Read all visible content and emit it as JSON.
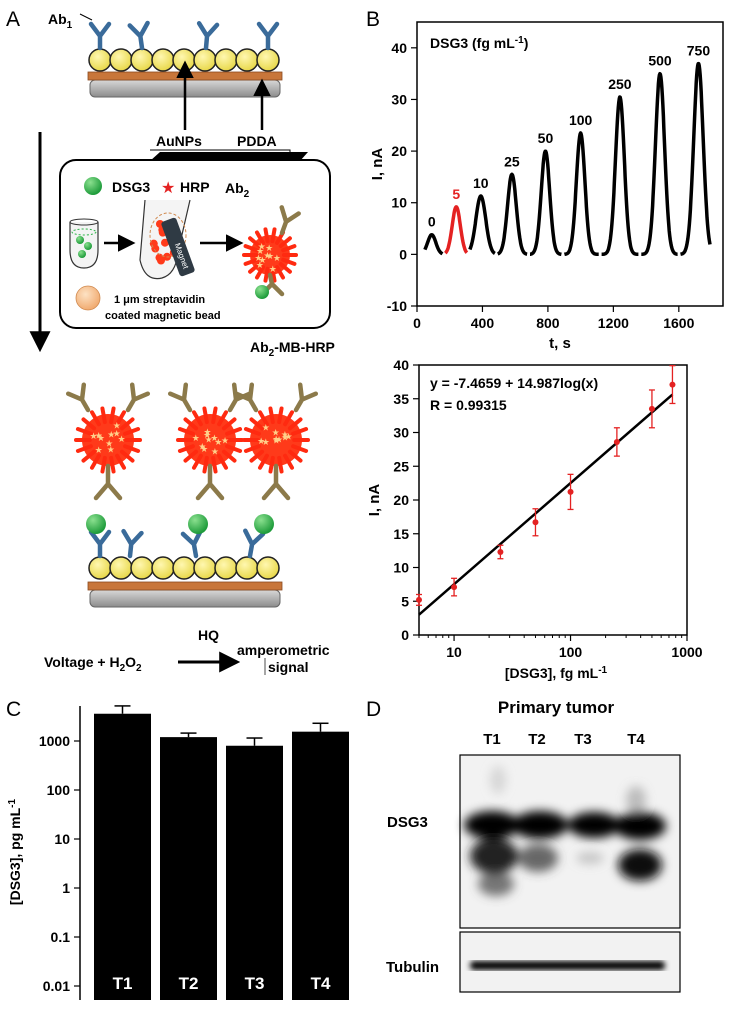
{
  "panel_labels": {
    "a": "A",
    "b": "B",
    "c": "C",
    "d": "D"
  },
  "panel_a": {
    "ab1_label": "Ab",
    "ab1_sub": "1",
    "aunps_label": "AuNPs",
    "pdda_label": "PDDA",
    "legend_dsg3": "DSG3",
    "legend_hrp": "HRP",
    "ab2_label": "Ab",
    "ab2_sub": "2",
    "magnet_label": "Magnet",
    "bead_label_1": "1 μm streptavidin",
    "bead_label_2": "coated magnetic bead",
    "conj_label": "Ab",
    "conj_sub": "2",
    "conj_suffix": "-MB-HRP",
    "hq_label": "HQ",
    "voltage_text": "Voltage + H",
    "h2o2_sub": "2",
    "o_text": "O",
    "h2o2_sub2": "2",
    "amp_line1": "amperometric",
    "amp_line2": "signal",
    "colors": {
      "antibody_blue": "#3a6b9a",
      "antibody_olive": "#8c7a4a",
      "aunp_yellow": "#f2e25a",
      "pdda_orange": "#c8763a",
      "dsg3_green": "#2fb54a",
      "hrp_red": "#e42222"
    }
  },
  "chart_data": [
    {
      "id": "B-top",
      "type": "line",
      "title": "DSG3 (fg mL",
      "title_sup": "-1",
      "title_close": ")",
      "xlabel": "t, s",
      "ylabel": "I, nA",
      "xlim": [
        0,
        1870
      ],
      "ylim": [
        -10,
        45
      ],
      "xticks": [
        0,
        400,
        800,
        1200,
        1600
      ],
      "yticks": [
        -10,
        0,
        10,
        20,
        30,
        40
      ],
      "peaks": [
        {
          "label": "0",
          "center": 90,
          "height": 3.8,
          "width": 25,
          "color": "#000000"
        },
        {
          "label": "5",
          "center": 240,
          "height": 9.2,
          "width": 25,
          "color": "#e42222"
        },
        {
          "label": "10",
          "center": 390,
          "height": 11.3,
          "width": 30,
          "color": "#000000"
        },
        {
          "label": "25",
          "center": 580,
          "height": 15.5,
          "width": 27,
          "color": "#000000"
        },
        {
          "label": "50",
          "center": 785,
          "height": 20.0,
          "width": 26,
          "color": "#000000"
        },
        {
          "label": "100",
          "center": 1000,
          "height": 23.5,
          "width": 26,
          "color": "#000000"
        },
        {
          "label": "250",
          "center": 1240,
          "height": 30.5,
          "width": 27,
          "color": "#000000"
        },
        {
          "label": "500",
          "center": 1485,
          "height": 35.0,
          "width": 28,
          "color": "#000000"
        },
        {
          "label": "750",
          "center": 1720,
          "height": 37.0,
          "width": 29,
          "color": "#000000"
        }
      ]
    },
    {
      "id": "B-bottom",
      "type": "scatter",
      "xlabel": "[DSG3], fg mL",
      "xlabel_sup": "-1",
      "ylabel": "I, nA",
      "xscale": "log",
      "xlim": [
        5,
        1000
      ],
      "ylim": [
        0,
        40
      ],
      "xticks": [
        10,
        100,
        1000
      ],
      "yticks": [
        0,
        5,
        10,
        15,
        20,
        25,
        30,
        35,
        40
      ],
      "equation": "y = -7.4659 + 14.987log(x)",
      "r_value": "R = 0.99315",
      "fit": {
        "intercept": -7.4659,
        "slope": 14.987
      },
      "points": [
        {
          "x": 5,
          "y": 5.2,
          "err": 0.8
        },
        {
          "x": 10,
          "y": 7.1,
          "err": 1.3
        },
        {
          "x": 25,
          "y": 12.3,
          "err": 1.0
        },
        {
          "x": 50,
          "y": 16.7,
          "err": 2.0
        },
        {
          "x": 100,
          "y": 21.2,
          "err": 2.6
        },
        {
          "x": 250,
          "y": 28.6,
          "err": 2.1
        },
        {
          "x": 500,
          "y": 33.5,
          "err": 2.8
        },
        {
          "x": 750,
          "y": 37.1,
          "err": 2.8
        }
      ],
      "point_color": "#e42222"
    },
    {
      "id": "C",
      "type": "bar",
      "ylabel": "[DSG3], pg mL",
      "ylabel_sup": "-1",
      "yscale": "log",
      "ylim": [
        0.01,
        10000
      ],
      "yticks": [
        0.01,
        0.1,
        1,
        10,
        100,
        1000
      ],
      "ytick_labels": [
        "0.01",
        "0.1",
        "1",
        "10",
        "100",
        "1000"
      ],
      "categories": [
        "T1",
        "T2",
        "T3",
        "T4"
      ],
      "values": [
        3600,
        1200,
        800,
        1550
      ],
      "errors": [
        5200,
        1450,
        1150,
        2300
      ]
    }
  ],
  "panel_d": {
    "title": "Primary tumor",
    "lanes": [
      "T1",
      "T2",
      "T3",
      "T4"
    ],
    "band_labels": [
      "DSG3",
      "Tubulin"
    ]
  }
}
